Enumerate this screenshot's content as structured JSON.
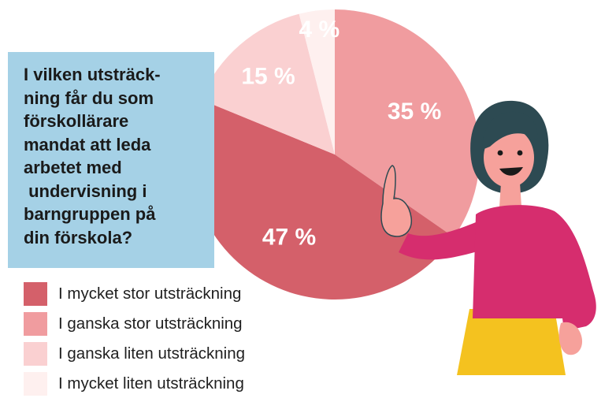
{
  "question": "I vilken utsträck-\nning får du som\nförskollärare\nmandat att leda\narbetet med\n undervisning i\nbarngruppen på\ndin förskola?",
  "chart_data": {
    "type": "pie",
    "slices": [
      {
        "label": "I mycket stor utsträckning",
        "value": 47,
        "display": "47 %",
        "color": "#d4606a",
        "label_color": "#ffffff"
      },
      {
        "label": "I ganska stor utsträckning",
        "value": 35,
        "display": "35 %",
        "color": "#f09c9f",
        "label_color": "#ffffff"
      },
      {
        "label": "I ganska liten utsträckning",
        "value": 15,
        "display": "15 %",
        "color": "#fad0d1",
        "label_color": "#ffffff"
      },
      {
        "label": "I mycket liten utsträckning",
        "value": 4,
        "display": "4 %",
        "color": "#fef0ef",
        "label_color": "#d4606a"
      }
    ],
    "start": "12 o'clock",
    "direction": "clockwise, starting with 35 %"
  },
  "illustration": {
    "subject": "woman-pointing",
    "colors": {
      "hair": "#2d4a52",
      "skin": "#f6a19b",
      "sweater": "#d62d6e",
      "skirt": "#f4c21f"
    }
  }
}
